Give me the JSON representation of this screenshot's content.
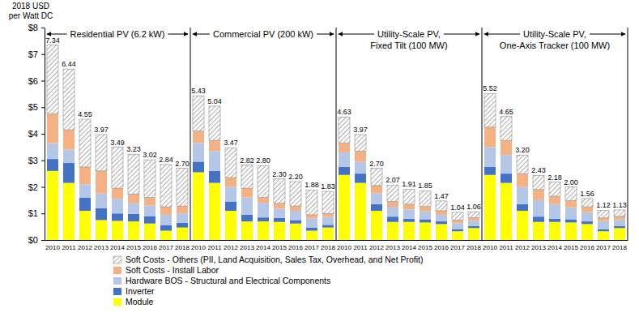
{
  "chart_data": {
    "type": "bar",
    "stacked": true,
    "data_labels": true,
    "grid": false,
    "y_label": [
      "2018 USD",
      "per Watt DC"
    ],
    "panels": [
      [
        "Residential PV (6.2 kW)"
      ],
      [
        "Commercial PV (200 kW)"
      ],
      [
        "Utility-Scale PV,",
        "Fixed Tilt (100 MW)"
      ],
      [
        "Utility-Scale PV,",
        "One-Axis Tracker (100 MW)"
      ]
    ],
    "categories": [
      "2010",
      "2011",
      "2012",
      "2013",
      "2014",
      "2015",
      "2016",
      "2017",
      "2018",
      "2010",
      "2011",
      "2012",
      "2013",
      "2014",
      "2015",
      "2016",
      "2017",
      "2018",
      "2010",
      "2011",
      "2012",
      "2013",
      "2014",
      "2015",
      "2016",
      "2017",
      "2018",
      "2010",
      "2011",
      "2012",
      "2013",
      "2014",
      "2015",
      "2016",
      "2017",
      "2018"
    ],
    "ylim": [
      0,
      8
    ],
    "yticks": [
      {
        "value": 0,
        "label": "$0"
      },
      {
        "value": 1,
        "label": "$1"
      },
      {
        "value": 2,
        "label": "$2"
      },
      {
        "value": 3,
        "label": "$3"
      },
      {
        "value": 4,
        "label": "$4"
      },
      {
        "value": 5,
        "label": "$5"
      },
      {
        "value": 6,
        "label": "$6"
      },
      {
        "value": 7,
        "label": "$7"
      },
      {
        "value": 8,
        "label": "$8"
      }
    ],
    "series": [
      {
        "name": "Module",
        "color": "#ffff00",
        "values": [
          2.6,
          2.15,
          1.1,
          0.75,
          0.72,
          0.7,
          0.62,
          0.35,
          0.47,
          2.55,
          2.15,
          1.1,
          0.7,
          0.7,
          0.68,
          0.62,
          0.35,
          0.47,
          2.45,
          2.15,
          1.1,
          0.68,
          0.68,
          0.66,
          0.6,
          0.33,
          0.45,
          2.45,
          2.15,
          1.1,
          0.68,
          0.68,
          0.66,
          0.6,
          0.33,
          0.45
        ]
      },
      {
        "name": "Inverter",
        "color": "#4472c4",
        "values": [
          0.45,
          0.75,
          0.5,
          0.45,
          0.28,
          0.28,
          0.28,
          0.2,
          0.18,
          0.4,
          0.45,
          0.35,
          0.25,
          0.15,
          0.15,
          0.13,
          0.12,
          0.1,
          0.3,
          0.35,
          0.25,
          0.2,
          0.12,
          0.12,
          0.1,
          0.08,
          0.07,
          0.3,
          0.35,
          0.25,
          0.2,
          0.12,
          0.12,
          0.1,
          0.08,
          0.07
        ]
      },
      {
        "name": "Hardware BOS - Structural and Electrical Components",
        "color": "#b4c7e7",
        "values": [
          0.6,
          0.5,
          0.5,
          0.55,
          0.55,
          0.4,
          0.4,
          0.4,
          0.35,
          0.7,
          0.75,
          0.55,
          0.65,
          0.55,
          0.35,
          0.35,
          0.33,
          0.3,
          0.55,
          0.45,
          0.4,
          0.37,
          0.35,
          0.3,
          0.25,
          0.22,
          0.2,
          0.75,
          0.7,
          0.65,
          0.62,
          0.55,
          0.45,
          0.35,
          0.3,
          0.25
        ]
      },
      {
        "name": "Soft Costs - Install Labor",
        "color": "#f4b183",
        "values": [
          1.1,
          0.75,
          0.65,
          0.85,
          0.4,
          0.35,
          0.3,
          0.3,
          0.28,
          0.45,
          0.4,
          0.35,
          0.35,
          0.2,
          0.2,
          0.18,
          0.15,
          0.13,
          0.35,
          0.4,
          0.3,
          0.2,
          0.2,
          0.18,
          0.15,
          0.12,
          0.12,
          0.75,
          0.55,
          0.5,
          0.4,
          0.3,
          0.25,
          0.2,
          0.12,
          0.12
        ]
      },
      {
        "name": "Soft Costs - Others (PII, Land Acquisition, Sales Tax, Overhead, and Net Profit)",
        "color": "#7f7f7f",
        "values": [
          2.59,
          2.29,
          1.8,
          1.37,
          1.54,
          1.5,
          1.42,
          1.59,
          1.42,
          1.33,
          1.29,
          1.12,
          0.87,
          1.2,
          0.92,
          0.92,
          0.93,
          0.83,
          0.98,
          0.62,
          0.65,
          0.62,
          0.56,
          0.59,
          0.37,
          0.29,
          0.22,
          1.27,
          0.9,
          0.7,
          0.53,
          0.53,
          0.52,
          0.31,
          0.29,
          0.24
        ]
      }
    ],
    "totals": [
      7.34,
      6.44,
      4.55,
      3.97,
      3.49,
      3.23,
      3.02,
      2.84,
      2.7,
      5.43,
      5.04,
      3.47,
      2.82,
      2.8,
      2.3,
      2.2,
      1.88,
      1.83,
      4.63,
      3.97,
      2.7,
      2.07,
      1.91,
      1.85,
      1.47,
      1.04,
      1.06,
      5.52,
      4.65,
      3.2,
      2.43,
      2.18,
      2.0,
      1.56,
      1.12,
      1.13
    ],
    "total_labels": [
      "7.34",
      "6.44",
      "4.55",
      "3.97",
      "3.49",
      "3.23",
      "3.02",
      "2.84",
      "2.70",
      "5.43",
      "5.04",
      "3.47",
      "2.82",
      "2.80",
      "2.30",
      "2.20",
      "1.88",
      "1.83",
      "4.63",
      "3.97",
      "2.70",
      "2.07",
      "1.91",
      "1.85",
      "1.47",
      "1.04",
      "1.06",
      "5.52",
      "4.65",
      "3.20",
      "2.43",
      "2.18",
      "2.00",
      "1.56",
      "1.12",
      "1.13"
    ]
  }
}
